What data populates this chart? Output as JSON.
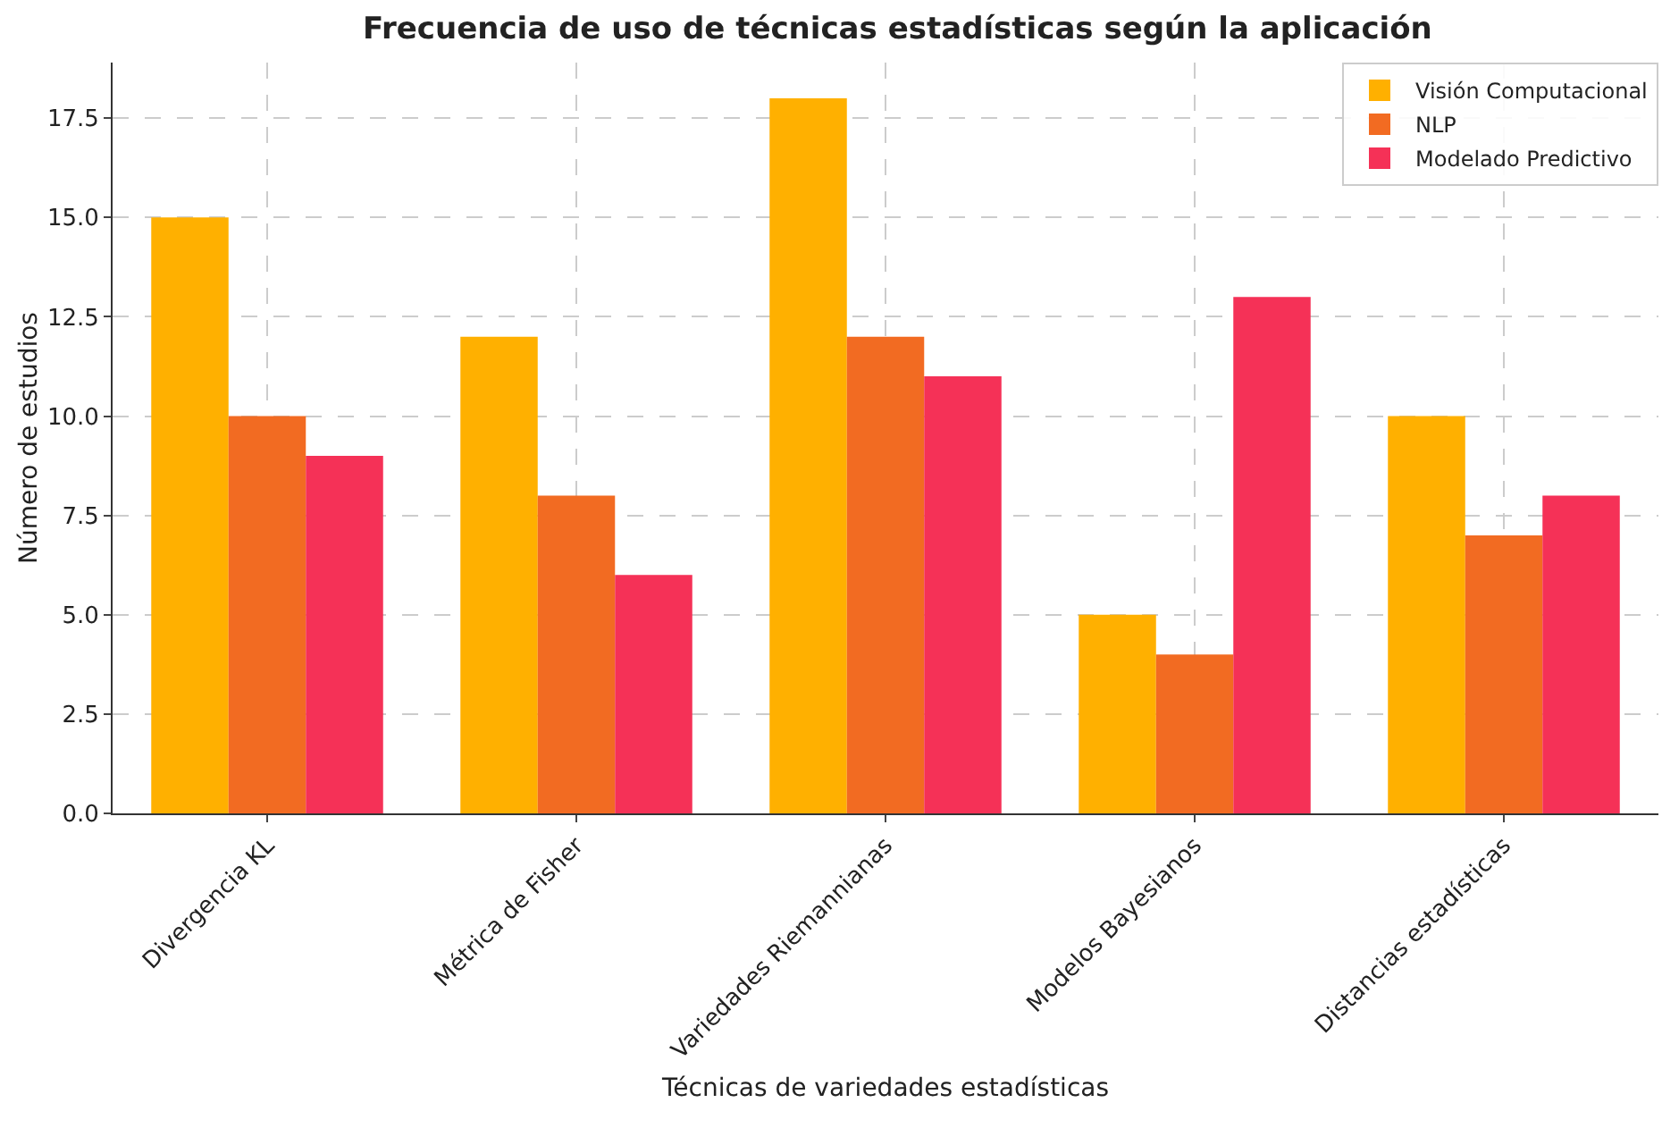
{
  "chart_data": {
    "type": "bar",
    "title": "Frecuencia de uso de técnicas estadísticas según la aplicación",
    "xlabel": "Técnicas de variedades estadísticas",
    "ylabel": "Número de estudios",
    "categories": [
      "Divergencia KL",
      "Métrica de Fisher",
      "Variedades Riemannianas",
      "Modelos Bayesianos",
      "Distancias estadísticas"
    ],
    "series": [
      {
        "name": "Visión Computacional",
        "color": "#ffb000",
        "values": [
          15,
          12,
          18,
          5,
          10
        ]
      },
      {
        "name": "NLP",
        "color": "#f26b22",
        "values": [
          10,
          8,
          12,
          4,
          7
        ]
      },
      {
        "name": "Modelado Predictivo",
        "color": "#f53157",
        "values": [
          9,
          6,
          11,
          13,
          8
        ]
      }
    ],
    "ylim": [
      0,
      18.9
    ],
    "yticks": [
      {
        "value": 0,
        "label": "0.0"
      },
      {
        "value": 2.5,
        "label": "2.5"
      },
      {
        "value": 5,
        "label": "5.0"
      },
      {
        "value": 7.5,
        "label": "7.5"
      },
      {
        "value": 10,
        "label": "10.0"
      },
      {
        "value": 12.5,
        "label": "12.5"
      },
      {
        "value": 15,
        "label": "15.0"
      },
      {
        "value": 17.5,
        "label": "17.5"
      }
    ],
    "grid": true,
    "legend": "top right"
  }
}
